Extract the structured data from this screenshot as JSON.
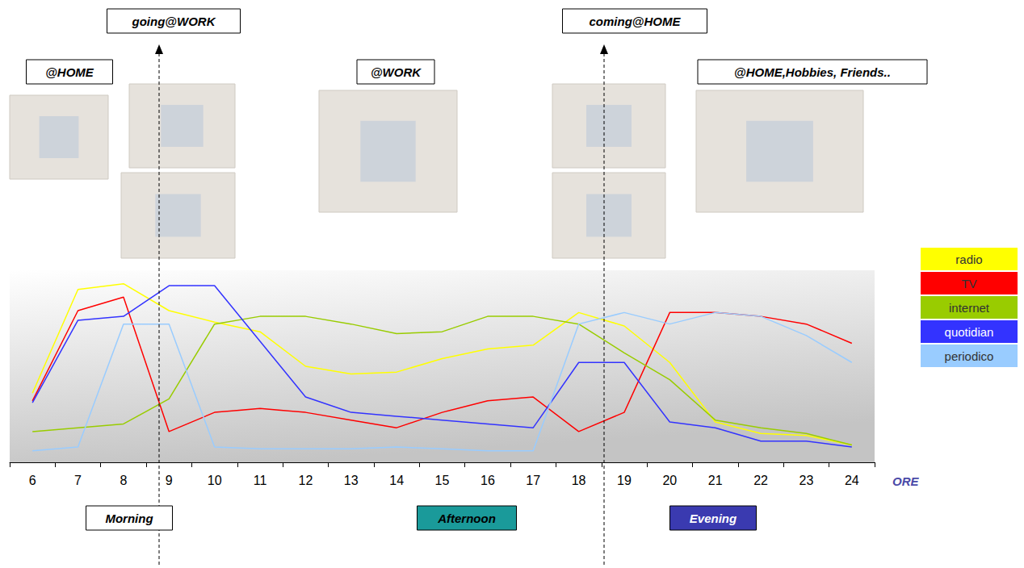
{
  "chart_data": {
    "type": "line",
    "x_label": "ORE",
    "categories": [
      "6",
      "7",
      "8",
      "9",
      "10",
      "11",
      "12",
      "13",
      "14",
      "15",
      "16",
      "17",
      "18",
      "19",
      "20",
      "21",
      "22",
      "23",
      "24"
    ],
    "ylim": [
      0,
      100
    ],
    "grid": false,
    "tick_labels": "x",
    "legend": "right",
    "series": [
      {
        "name": "radio",
        "color": "#ffff00",
        "values": [
          36,
          90,
          93,
          79,
          73,
          68,
          50,
          46,
          47,
          54,
          59,
          61,
          78,
          71,
          52,
          21,
          15,
          14,
          9
        ]
      },
      {
        "name": "TV",
        "color": "#ff0000",
        "values": [
          32,
          79,
          86,
          16,
          26,
          28,
          26,
          22,
          18,
          26,
          32,
          34,
          16,
          26,
          78,
          78,
          76,
          72,
          62
        ]
      },
      {
        "name": "internet",
        "color": "#99cc00",
        "values": [
          16,
          18,
          20,
          33,
          72,
          76,
          76,
          72,
          67,
          68,
          76,
          76,
          72,
          57,
          43,
          22,
          18,
          15,
          9
        ]
      },
      {
        "name": "quotidian",
        "color": "#3333ff",
        "values": [
          31,
          74,
          76,
          92,
          92,
          63,
          34,
          26,
          24,
          22,
          20,
          18,
          52,
          52,
          21,
          18,
          11,
          11,
          8
        ]
      },
      {
        "name": "periodico",
        "color": "#99ccff",
        "values": [
          6,
          8,
          72,
          72,
          8,
          7,
          7,
          7,
          8,
          7,
          6,
          6,
          72,
          78,
          72,
          78,
          76,
          66,
          52
        ]
      }
    ],
    "annotations": [
      {
        "text": "@HOME"
      },
      {
        "text": "going@WORK"
      },
      {
        "text": "@WORK"
      },
      {
        "text": "coming@HOME"
      },
      {
        "text": "@HOME,Hobbies, Friends.."
      },
      {
        "text": "Morning"
      },
      {
        "text": "Afternoon"
      },
      {
        "text": "Evening"
      }
    ]
  }
}
